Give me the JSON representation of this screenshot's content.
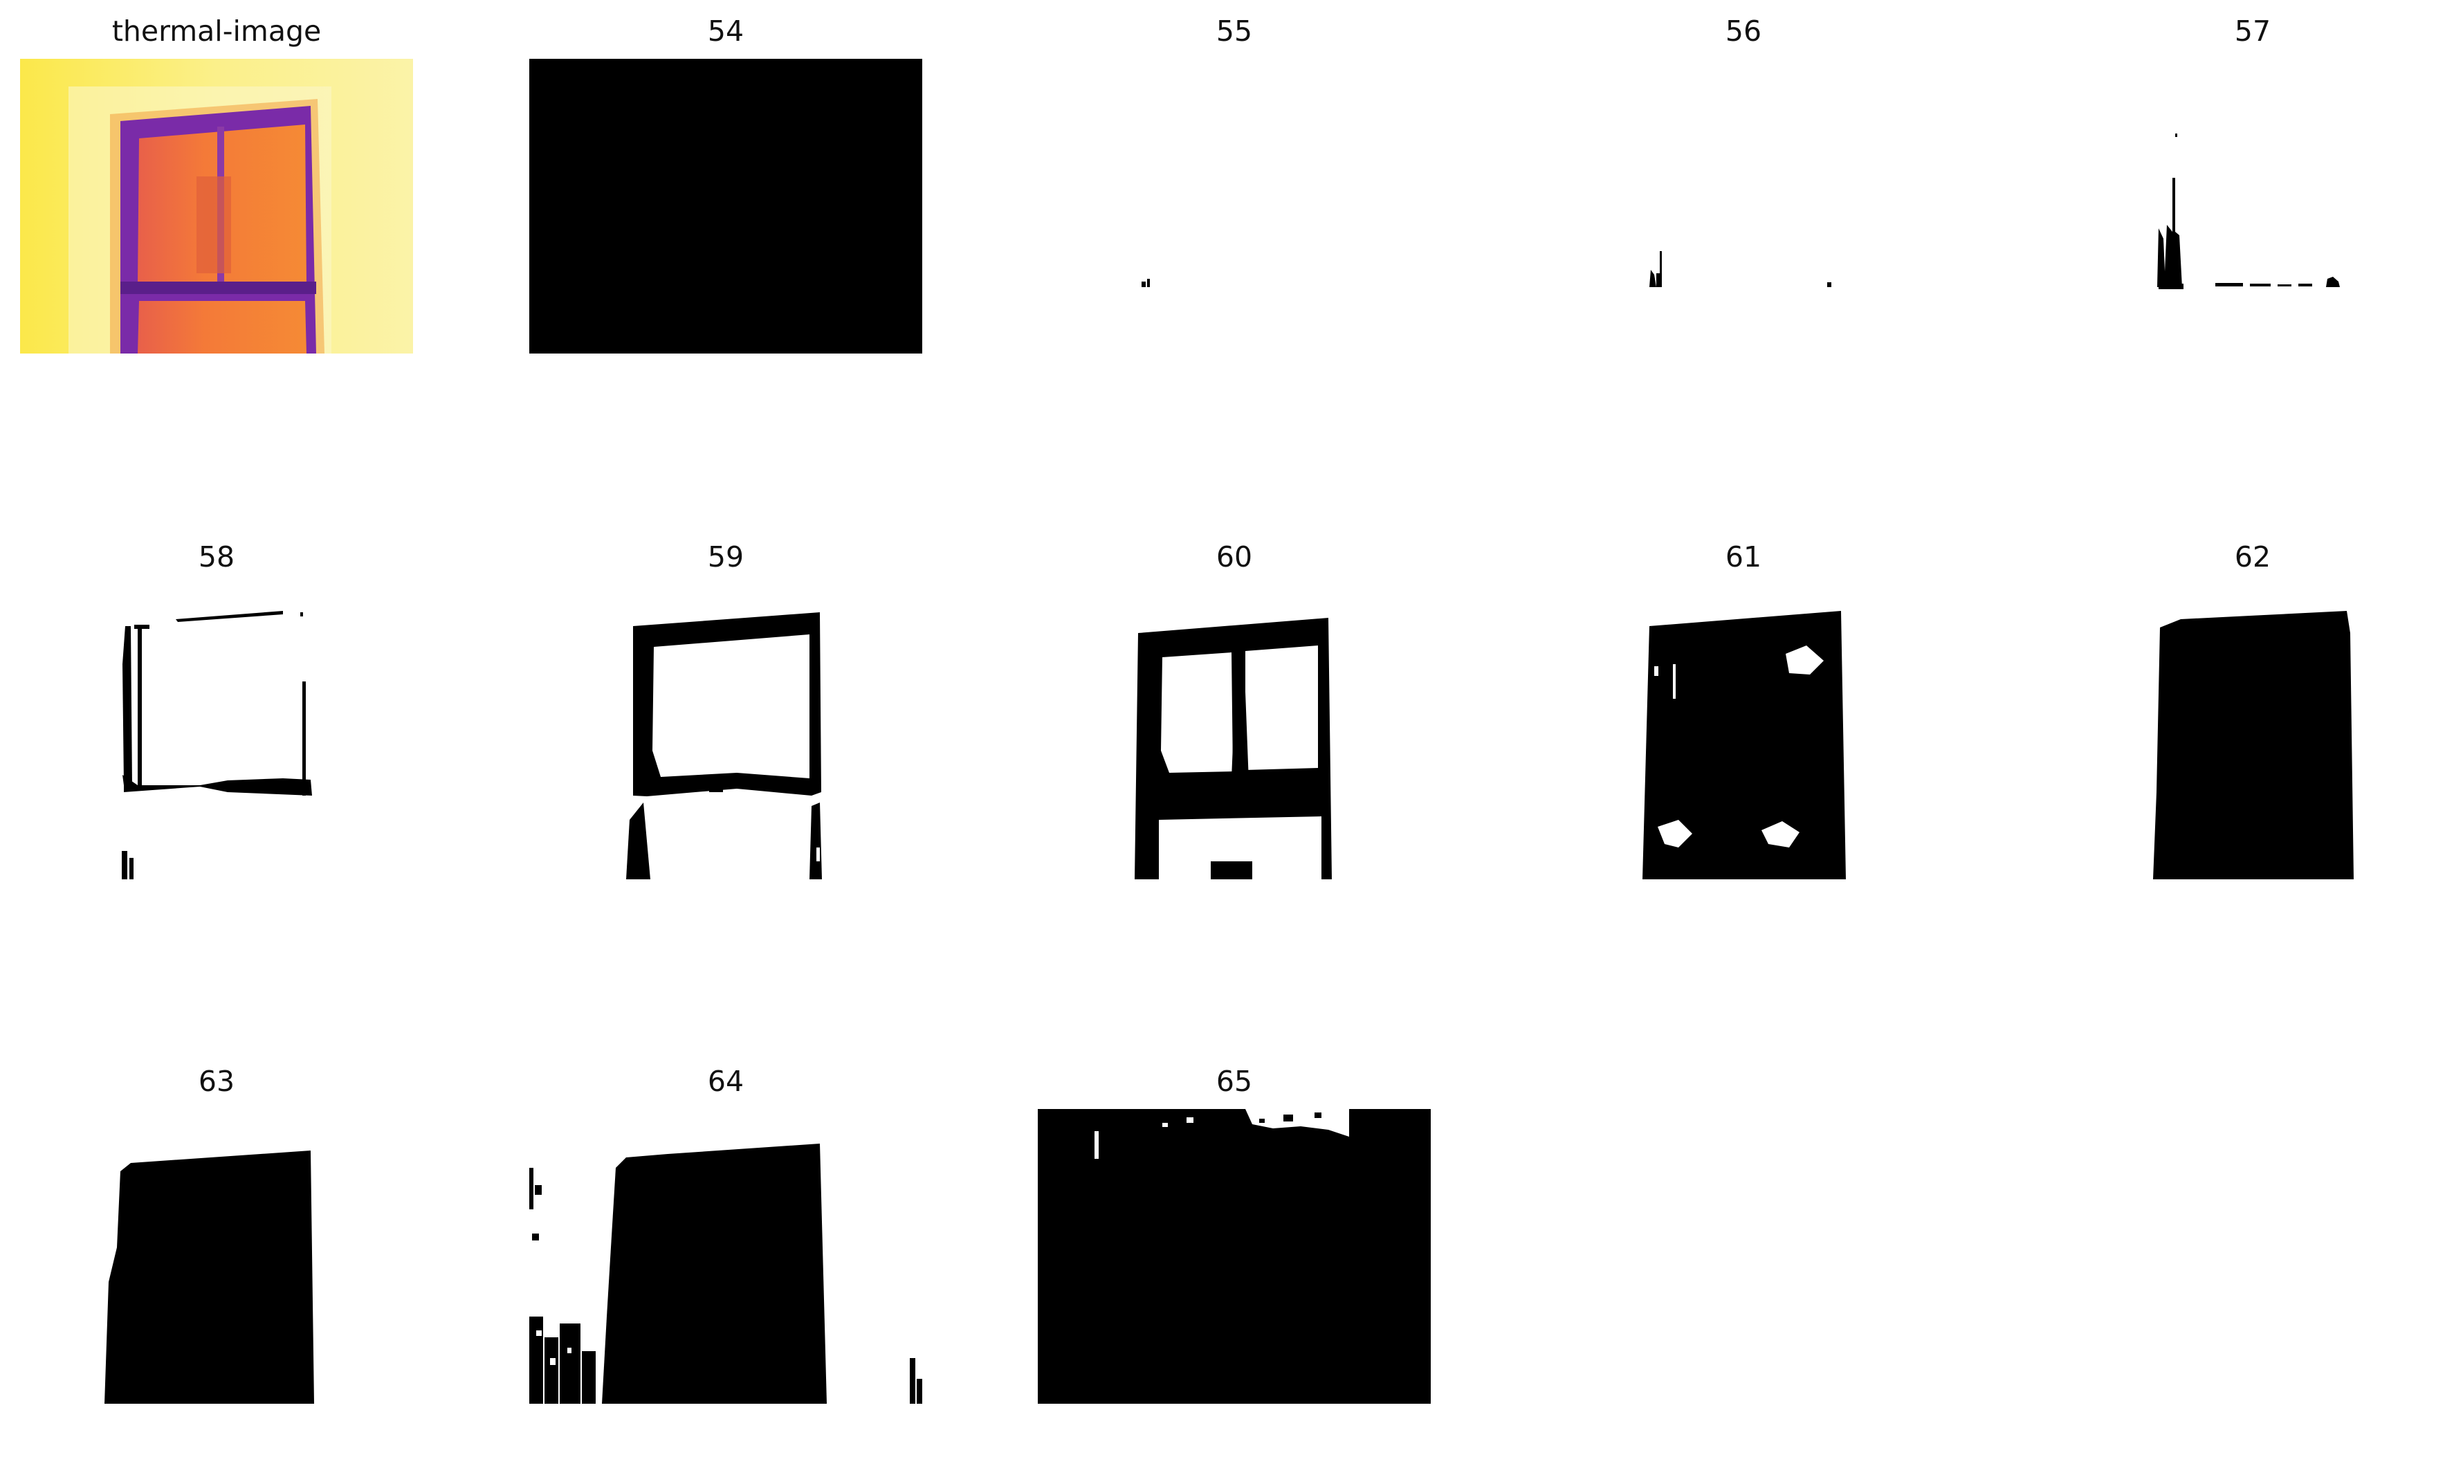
{
  "figure": {
    "panels": [
      {
        "id": "thermal",
        "title": "thermal-image",
        "kind": "thermal"
      },
      {
        "id": "t54",
        "title": "54",
        "kind": "mask"
      },
      {
        "id": "t55",
        "title": "55",
        "kind": "mask"
      },
      {
        "id": "t56",
        "title": "56",
        "kind": "mask"
      },
      {
        "id": "t57",
        "title": "57",
        "kind": "mask"
      },
      {
        "id": "t58",
        "title": "58",
        "kind": "mask"
      },
      {
        "id": "t59",
        "title": "59",
        "kind": "mask"
      },
      {
        "id": "t60",
        "title": "60",
        "kind": "mask"
      },
      {
        "id": "t61",
        "title": "61",
        "kind": "mask"
      },
      {
        "id": "t62",
        "title": "62",
        "kind": "mask"
      },
      {
        "id": "t63",
        "title": "63",
        "kind": "mask"
      },
      {
        "id": "t64",
        "title": "64",
        "kind": "mask"
      },
      {
        "id": "t65",
        "title": "65",
        "kind": "mask"
      }
    ],
    "colors": {
      "wall": "#f9f06a",
      "wall_light": "#fbf5a0",
      "frame": "#8a2fae",
      "glass": "#f37a3a",
      "mask": "#000000",
      "background": "#ffffff"
    }
  }
}
